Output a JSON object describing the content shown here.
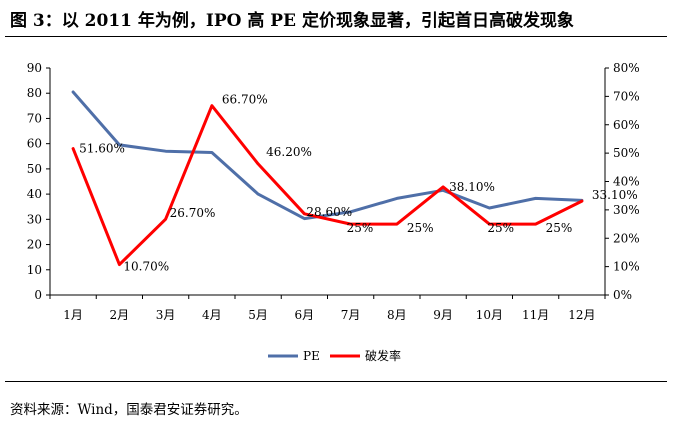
{
  "title": "图 3：以 2011 年为例，IPO 高 PE 定价现象显著，引起首日高破发现象",
  "source": "资料来源：Wind，国泰君安证券研究。",
  "chart_data": {
    "type": "line",
    "categories": [
      "1月",
      "2月",
      "3月",
      "4月",
      "5月",
      "6月",
      "7月",
      "8月",
      "9月",
      "10月",
      "11月",
      "12月"
    ],
    "y_left": {
      "ylim": [
        0,
        90
      ],
      "ticks": [
        "0",
        "10",
        "20",
        "30",
        "40",
        "50",
        "60",
        "70",
        "80",
        "90"
      ]
    },
    "y_right": {
      "ylim": [
        0,
        80
      ],
      "ticks": [
        "0%",
        "10%",
        "20%",
        "30%",
        "40%",
        "50%",
        "60%",
        "70%",
        "80%"
      ]
    },
    "series": [
      {
        "name": "PE",
        "axis": "left",
        "color": "#4F6FA8",
        "values": [
          80.5,
          59.5,
          57,
          56.5,
          40,
          30.3,
          33,
          38.3,
          41.5,
          34.5,
          38.3,
          37.5
        ]
      },
      {
        "name": "破发率",
        "axis": "right",
        "color": "#FF0000",
        "values": [
          51.6,
          10.7,
          26.7,
          66.7,
          46.2,
          28.6,
          25,
          25,
          38.1,
          25,
          25,
          33.1
        ],
        "data_labels": [
          "51.60%",
          "10.70%",
          "26.70%",
          "66.70%",
          "46.20%",
          "28.60%",
          "25%",
          "25%",
          "38.10%",
          "25%",
          "25%",
          "33.10%"
        ]
      }
    ],
    "legend_position": "bottom-center",
    "grid": false
  }
}
